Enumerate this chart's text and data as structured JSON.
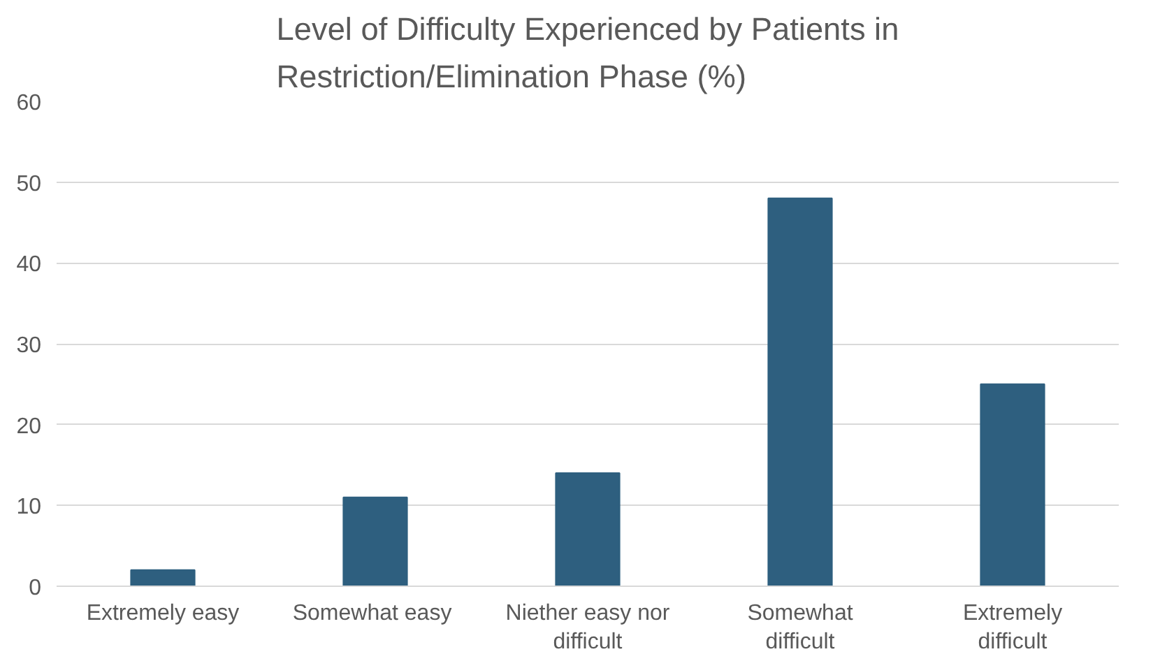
{
  "chart_data": {
    "type": "bar",
    "title": "Level of Difficulty Experienced by Patients in Restriction/Elimination Phase (%)",
    "categories": [
      "Extremely easy",
      "Somewhat  easy",
      "Niether easy nor difficult",
      "Somewhat difficult",
      "Extremely difficult"
    ],
    "values": [
      2,
      11,
      14,
      48,
      25
    ],
    "color": "#2e5f7f",
    "ylim": [
      0,
      60
    ],
    "yticks": [
      0,
      10,
      20,
      30,
      40,
      50,
      60
    ],
    "grid": "y"
  }
}
